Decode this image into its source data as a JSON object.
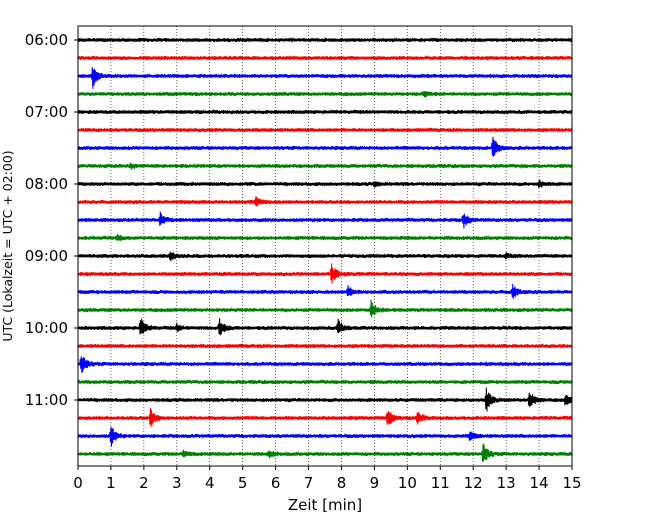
{
  "chart_data": {
    "type": "line",
    "title": "",
    "xlabel": "Zeit  [min]",
    "ylabel": "UTC (Lokalzeit = UTC + 02:00)",
    "xlim": [
      0,
      15
    ],
    "x_ticks": [
      "0",
      "1",
      "2",
      "3",
      "4",
      "5",
      "6",
      "7",
      "8",
      "9",
      "10",
      "11",
      "12",
      "13",
      "14",
      "15"
    ],
    "y_ticks": [
      "06:00",
      "07:00",
      "08:00",
      "09:00",
      "10:00",
      "11:00"
    ],
    "grid": "vertical dotted at each minute",
    "trace_colors": [
      "#000000",
      "#ff0000",
      "#0000ff",
      "#008000"
    ],
    "series": [
      {
        "start": "06:00",
        "events": []
      },
      {
        "start": "06:15",
        "events": []
      },
      {
        "start": "06:30",
        "events": [
          {
            "t": 0.45,
            "amp": 1.0
          }
        ]
      },
      {
        "start": "06:45",
        "events": [
          {
            "t": 10.5,
            "amp": 0.25
          }
        ]
      },
      {
        "start": "07:00",
        "events": []
      },
      {
        "start": "07:15",
        "events": []
      },
      {
        "start": "07:30",
        "events": [
          {
            "t": 12.6,
            "amp": 1.0
          }
        ]
      },
      {
        "start": "07:45",
        "events": [
          {
            "t": 1.6,
            "amp": 0.2
          }
        ]
      },
      {
        "start": "08:00",
        "events": [
          {
            "t": 14.0,
            "amp": 0.3
          },
          {
            "t": 9.0,
            "amp": 0.2
          }
        ]
      },
      {
        "start": "08:15",
        "events": [
          {
            "t": 5.4,
            "amp": 0.4
          }
        ]
      },
      {
        "start": "08:30",
        "events": [
          {
            "t": 2.5,
            "amp": 0.6
          },
          {
            "t": 11.7,
            "amp": 0.7
          }
        ]
      },
      {
        "start": "08:45",
        "events": [
          {
            "t": 1.2,
            "amp": 0.2
          }
        ]
      },
      {
        "start": "09:00",
        "events": [
          {
            "t": 2.8,
            "amp": 0.45
          },
          {
            "t": 13.0,
            "amp": 0.2
          }
        ]
      },
      {
        "start": "09:15",
        "events": [
          {
            "t": 7.7,
            "amp": 0.9
          }
        ]
      },
      {
        "start": "09:30",
        "events": [
          {
            "t": 8.2,
            "amp": 0.5
          },
          {
            "t": 13.2,
            "amp": 0.6
          }
        ]
      },
      {
        "start": "09:45",
        "events": [
          {
            "t": 8.9,
            "amp": 0.8
          }
        ]
      },
      {
        "start": "10:00",
        "events": [
          {
            "t": 1.9,
            "amp": 0.9
          },
          {
            "t": 4.3,
            "amp": 0.8
          },
          {
            "t": 7.9,
            "amp": 0.7
          },
          {
            "t": 3.0,
            "amp": 0.3
          }
        ]
      },
      {
        "start": "10:15",
        "events": []
      },
      {
        "start": "10:30",
        "events": [
          {
            "t": 0.1,
            "amp": 1.0
          }
        ]
      },
      {
        "start": "10:45",
        "events": []
      },
      {
        "start": "11:00",
        "events": [
          {
            "t": 12.4,
            "amp": 1.0
          },
          {
            "t": 13.7,
            "amp": 0.9
          },
          {
            "t": 14.8,
            "amp": 0.5
          }
        ]
      },
      {
        "start": "11:15",
        "events": [
          {
            "t": 2.2,
            "amp": 0.8
          },
          {
            "t": 9.4,
            "amp": 0.8
          },
          {
            "t": 10.3,
            "amp": 0.6
          }
        ]
      },
      {
        "start": "11:30",
        "events": [
          {
            "t": 1.0,
            "amp": 1.0
          },
          {
            "t": 11.9,
            "amp": 0.4
          }
        ]
      },
      {
        "start": "11:45",
        "events": [
          {
            "t": 12.3,
            "amp": 1.0
          },
          {
            "t": 5.8,
            "amp": 0.3
          },
          {
            "t": 3.2,
            "amp": 0.3
          }
        ]
      }
    ]
  }
}
